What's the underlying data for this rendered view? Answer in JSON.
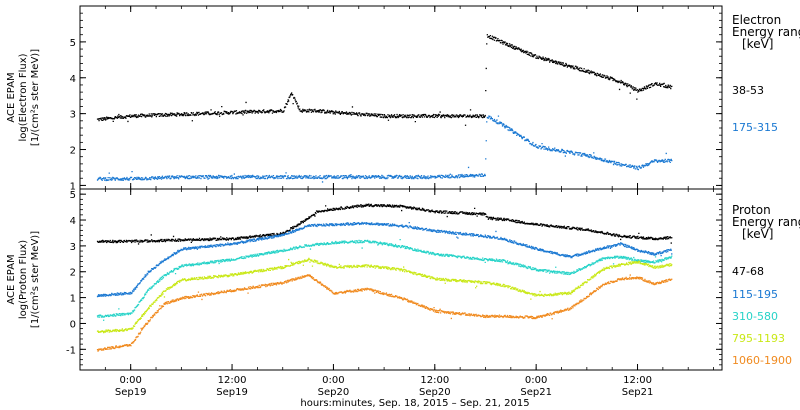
{
  "chart_data": [
    {
      "type": "scatter",
      "panel": "electron",
      "ylabel_lines": [
        "ACE EPAM",
        "log(Electron Flux)",
        "[1/(cm²s ster MeV)]"
      ],
      "ylim": [
        0.9,
        6.0
      ],
      "yticks": [
        1,
        2,
        3,
        4,
        5
      ],
      "legend_title_lines": [
        "Electron",
        "Energy range",
        "[keV]"
      ],
      "series": [
        {
          "name": "38-53",
          "color": "#000000",
          "x": [
            -4,
            0,
            6,
            12,
            18,
            19,
            20,
            22,
            24,
            30,
            36,
            41.9,
            42.1,
            44,
            48,
            54,
            58,
            60,
            62,
            64
          ],
          "y": [
            2.85,
            2.95,
            3.0,
            3.05,
            3.1,
            3.6,
            3.1,
            3.1,
            3.05,
            2.95,
            2.95,
            2.95,
            5.2,
            5.0,
            4.6,
            4.2,
            3.9,
            3.65,
            3.85,
            3.75
          ]
        },
        {
          "name": "175-315",
          "color": "#1a78d2",
          "x": [
            -4,
            0,
            6,
            12,
            18,
            24,
            30,
            36,
            41.9,
            42.1,
            44,
            48,
            54,
            58,
            60,
            62,
            64
          ],
          "y": [
            1.2,
            1.2,
            1.25,
            1.25,
            1.25,
            1.25,
            1.25,
            1.25,
            1.3,
            2.95,
            2.7,
            2.1,
            1.85,
            1.6,
            1.5,
            1.7,
            1.7
          ]
        }
      ]
    },
    {
      "type": "scatter",
      "panel": "proton",
      "ylabel_lines": [
        "ACE EPAM",
        "log(Proton Flux)",
        "[1/(cm²s ster MeV)]"
      ],
      "ylim": [
        -1.8,
        5.2
      ],
      "yticks": [
        -1,
        0,
        1,
        2,
        3,
        4,
        5
      ],
      "legend_title_lines": [
        "Proton",
        "Energy range",
        "[keV]"
      ],
      "series": [
        {
          "name": "47-68",
          "color": "#000000",
          "x": [
            -4,
            0,
            6,
            12,
            18,
            21,
            22,
            24,
            28,
            32,
            36,
            41.9,
            42.1,
            44,
            48,
            54,
            58,
            62,
            64
          ],
          "y": [
            3.2,
            3.2,
            3.25,
            3.3,
            3.5,
            4.1,
            4.35,
            4.45,
            4.6,
            4.55,
            4.35,
            4.25,
            4.1,
            4.05,
            3.85,
            3.65,
            3.4,
            3.3,
            3.35
          ]
        },
        {
          "name": "115-195",
          "color": "#1a78d2",
          "x": [
            -4,
            0,
            2,
            4,
            6,
            12,
            18,
            21,
            24,
            28,
            32,
            36,
            41.9,
            44,
            48,
            52,
            56,
            58,
            60,
            62,
            64
          ],
          "y": [
            1.1,
            1.2,
            2.0,
            2.5,
            2.9,
            3.1,
            3.45,
            3.8,
            3.85,
            3.9,
            3.8,
            3.6,
            3.4,
            3.3,
            2.9,
            2.6,
            2.95,
            3.1,
            2.85,
            2.7,
            2.9
          ]
        },
        {
          "name": "310-580",
          "color": "#27d3c8",
          "x": [
            -4,
            0,
            2,
            4,
            6,
            12,
            18,
            21,
            24,
            28,
            32,
            36,
            41.9,
            44,
            48,
            52,
            56,
            58,
            60,
            62,
            64
          ],
          "y": [
            0.3,
            0.4,
            1.3,
            1.9,
            2.25,
            2.5,
            2.85,
            3.05,
            3.15,
            3.2,
            3.0,
            2.7,
            2.5,
            2.45,
            2.1,
            1.95,
            2.55,
            2.6,
            2.45,
            2.4,
            2.6
          ]
        },
        {
          "name": "795-1193",
          "color": "#c9e817",
          "x": [
            -4,
            0,
            2,
            4,
            6,
            12,
            18,
            21,
            24,
            28,
            32,
            36,
            41.9,
            44,
            48,
            52,
            56,
            58,
            60,
            62,
            64
          ],
          "y": [
            -0.3,
            -0.2,
            0.6,
            1.3,
            1.7,
            1.9,
            2.2,
            2.5,
            2.2,
            2.25,
            2.1,
            1.75,
            1.6,
            1.5,
            1.1,
            1.2,
            2.15,
            2.3,
            2.4,
            2.2,
            2.3
          ]
        },
        {
          "name": "1060-1900",
          "color": "#f08a1f",
          "x": [
            -4,
            0,
            2,
            4,
            6,
            12,
            18,
            21,
            24,
            28,
            32,
            36,
            41.9,
            44,
            48,
            52,
            56,
            58,
            60,
            62,
            64
          ],
          "y": [
            -1.0,
            -0.8,
            0.1,
            0.8,
            1.0,
            1.3,
            1.6,
            1.9,
            1.2,
            1.35,
            1.0,
            0.5,
            0.3,
            0.3,
            0.25,
            0.6,
            1.55,
            1.75,
            1.8,
            1.55,
            1.75
          ]
        }
      ]
    }
  ],
  "x_axis": {
    "xlim": [
      -6,
      70
    ],
    "ticks": [
      {
        "t": 0,
        "time": "0:00",
        "date": "Sep19"
      },
      {
        "t": 12,
        "time": "12:00",
        "date": "Sep19"
      },
      {
        "t": 24,
        "time": "0:00",
        "date": "Sep20"
      },
      {
        "t": 36,
        "time": "12:00",
        "date": "Sep20"
      },
      {
        "t": 48,
        "time": "0:00",
        "date": "Sep21"
      },
      {
        "t": 60,
        "time": "12:00",
        "date": "Sep21"
      }
    ],
    "minor_step": 3,
    "xlabel": "hours:minutes, Sep. 18, 2015 – Sep. 21, 2015"
  }
}
